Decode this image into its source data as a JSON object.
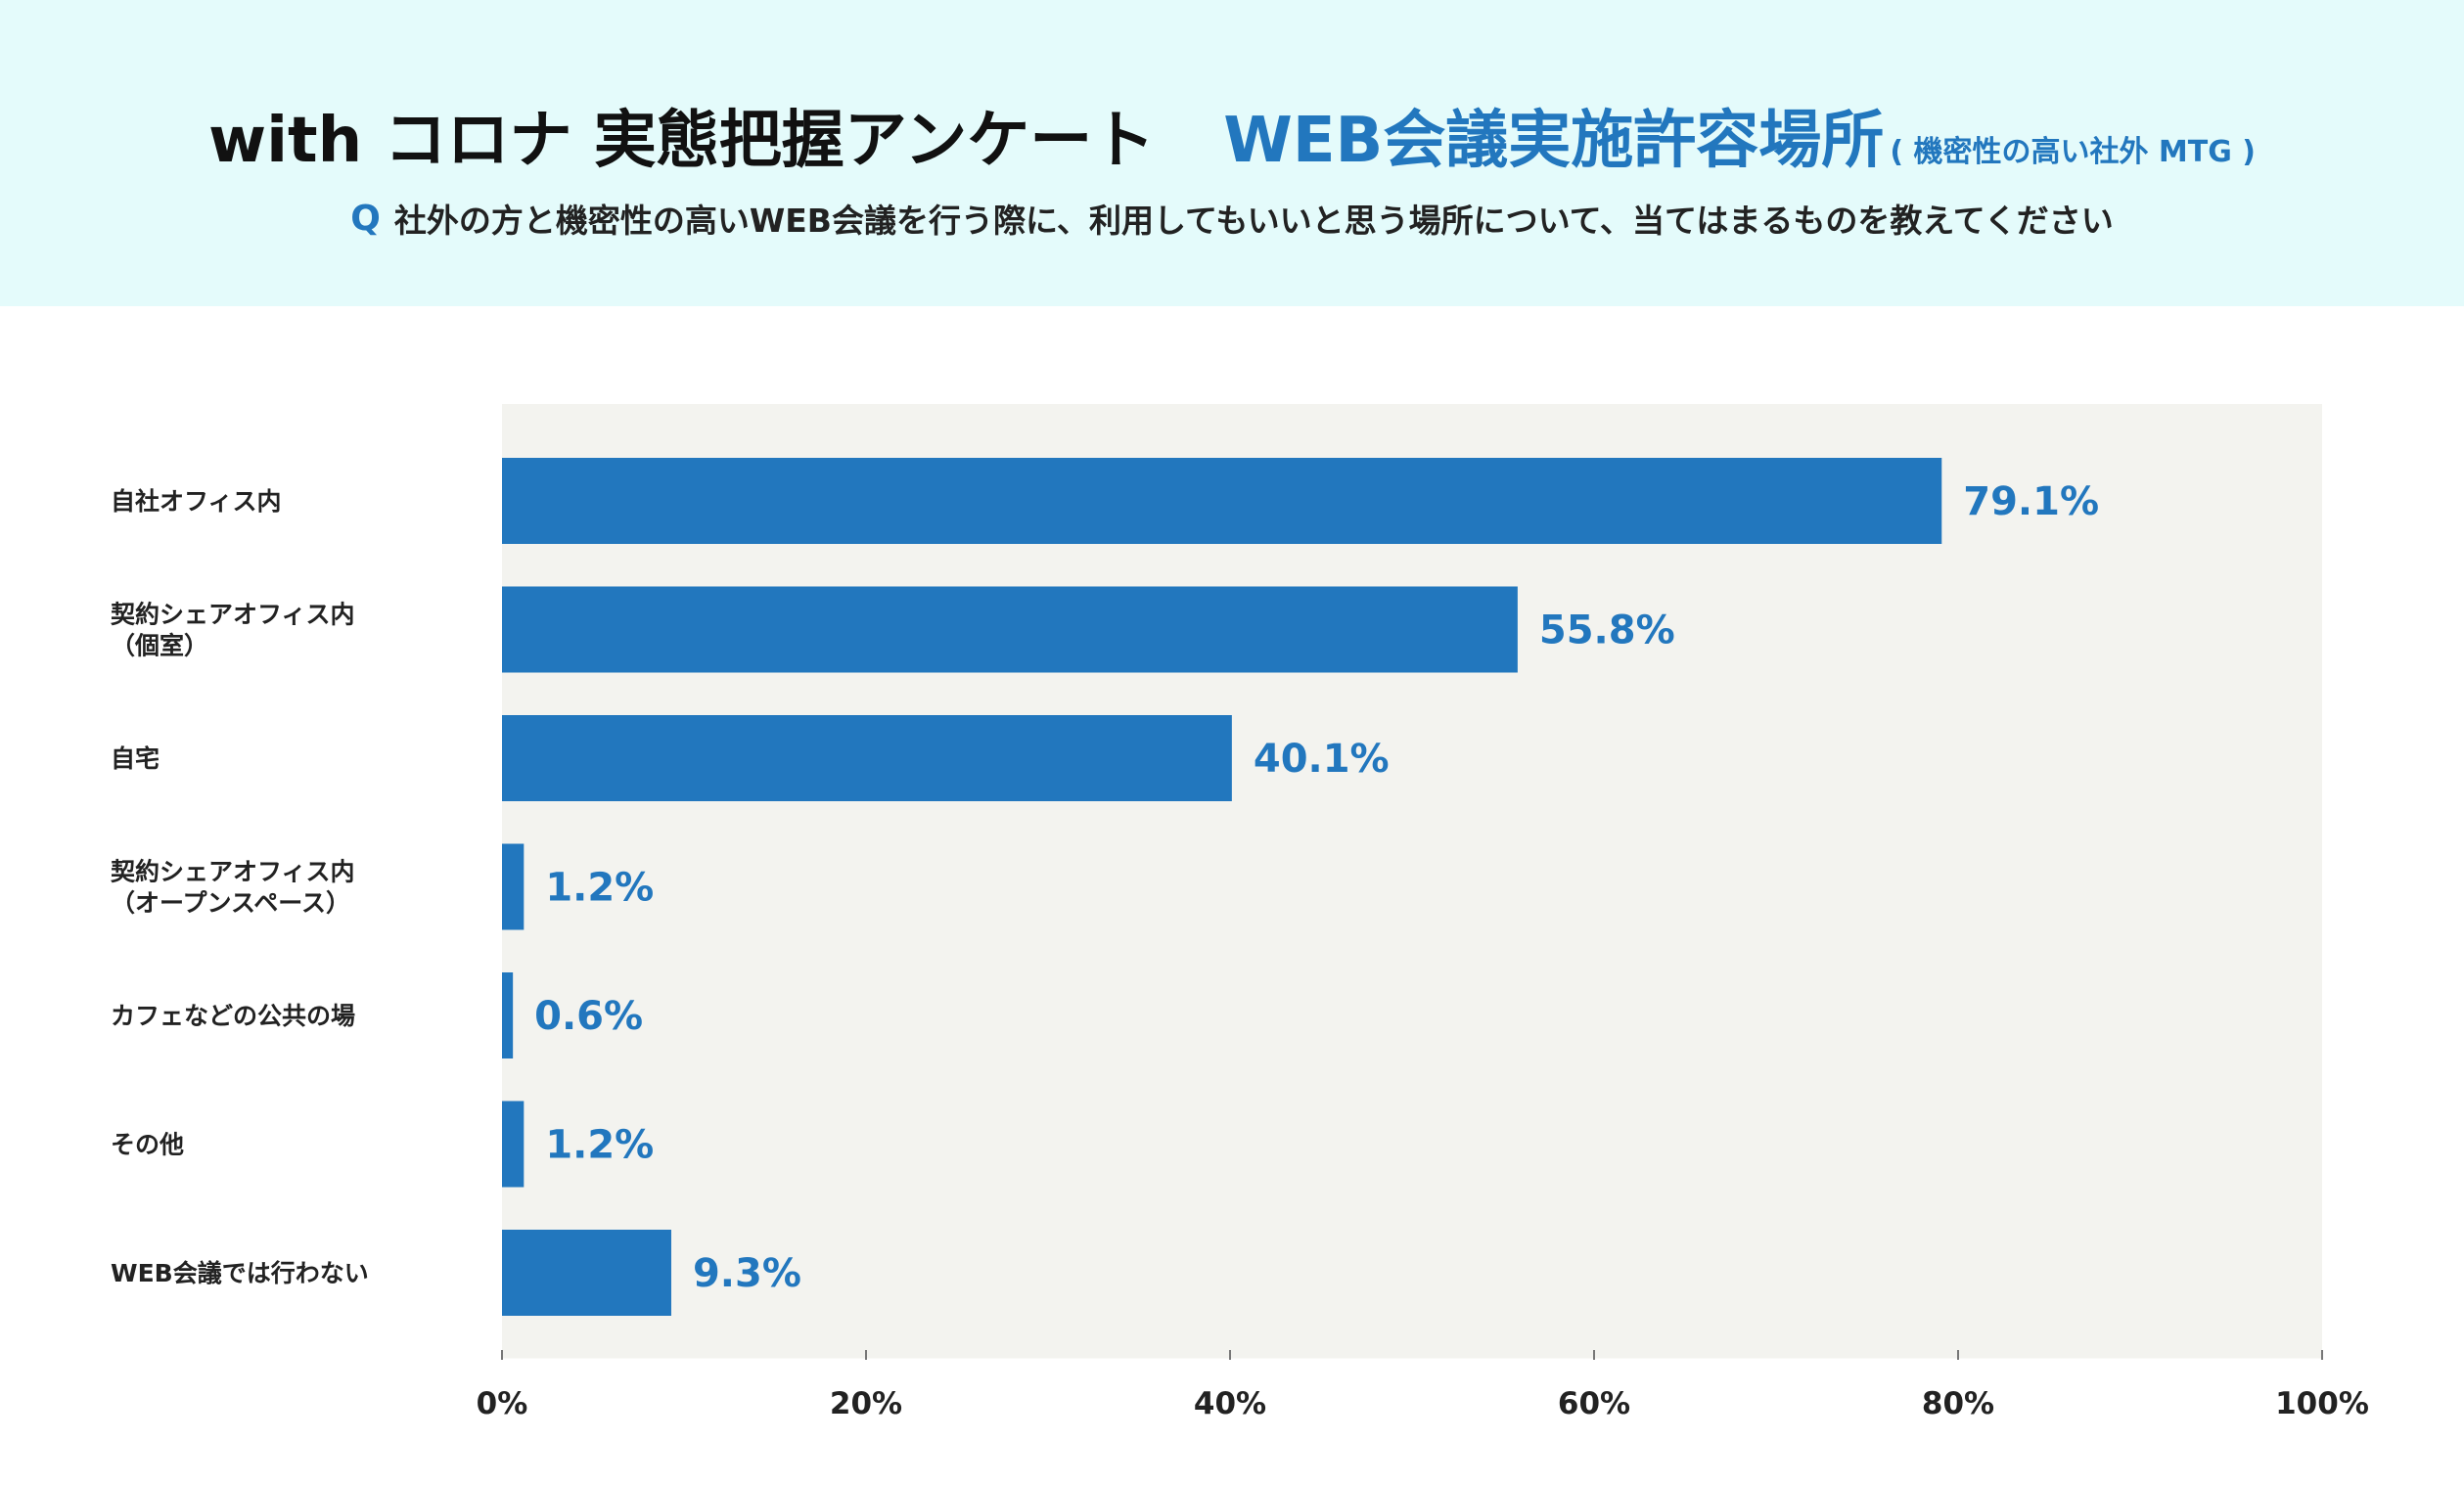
{
  "header": {
    "title_main": "with コロナ 実態把握アンケート",
    "title_topic": "WEB会議実施許容場所",
    "title_sub": "( 機密性の高い社外 MTG )",
    "question_mark": "Q",
    "question_text": "社外の方と機密性の高いWEB会議を行う際に、利用してもいいと思う場所について、当てはまるものを教えてください"
  },
  "colors": {
    "header_bg": "#e4fbfb",
    "plot_bg": "#f3f3ef",
    "bar": "#2277be",
    "value_text": "#2277be",
    "label_text": "#222222"
  },
  "chart_data": {
    "type": "bar",
    "orientation": "horizontal",
    "categories": [
      [
        "自社オフィス内"
      ],
      [
        "契約シェアオフィス内",
        "（個室）"
      ],
      [
        "自宅"
      ],
      [
        "契約シェアオフィス内",
        "（オープンスペース）"
      ],
      [
        "カフェなどの公共の場"
      ],
      [
        "その他"
      ],
      [
        "WEB会議では行わない"
      ]
    ],
    "values": [
      79.1,
      55.8,
      40.1,
      1.2,
      0.6,
      1.2,
      9.3
    ],
    "value_labels": [
      "79.1%",
      "55.8%",
      "40.1%",
      "1.2%",
      "0.6%",
      "1.2%",
      "9.3%"
    ],
    "xlim": [
      0,
      100
    ],
    "xticks": [
      0,
      20,
      40,
      60,
      80,
      100
    ],
    "xtick_labels": [
      "0%",
      "20%",
      "40%",
      "60%",
      "80%",
      "100%"
    ],
    "xlabel": "",
    "ylabel": "",
    "grid": false,
    "legend": "none"
  }
}
